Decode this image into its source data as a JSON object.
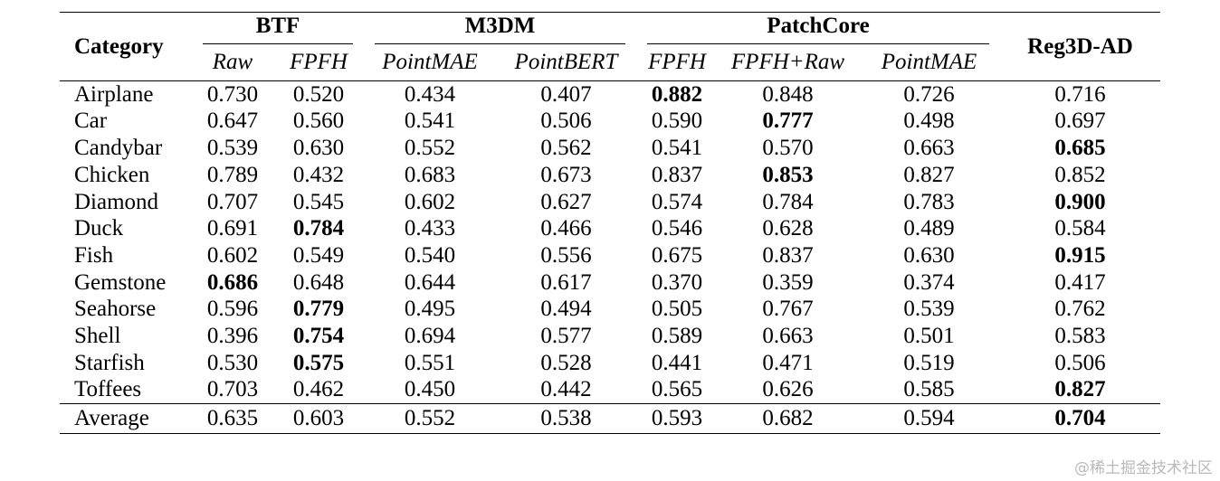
{
  "table": {
    "category_header": "Category",
    "groups": [
      {
        "label": "BTF",
        "span": 2
      },
      {
        "label": "M3DM",
        "span": 2
      },
      {
        "label": "PatchCore",
        "span": 3
      }
    ],
    "reg_header": "Reg3D-AD",
    "subheaders": [
      "Raw",
      "FPFH",
      "PointMAE",
      "PointBERT",
      "FPFH",
      "FPFH+Raw",
      "PointMAE"
    ],
    "rows": [
      {
        "category": "Airplane",
        "values": [
          "0.730",
          "0.520",
          "0.434",
          "0.407",
          "0.882",
          "0.848",
          "0.726",
          "0.716"
        ],
        "best": 4
      },
      {
        "category": "Car",
        "values": [
          "0.647",
          "0.560",
          "0.541",
          "0.506",
          "0.590",
          "0.777",
          "0.498",
          "0.697"
        ],
        "best": 5
      },
      {
        "category": "Candybar",
        "values": [
          "0.539",
          "0.630",
          "0.552",
          "0.562",
          "0.541",
          "0.570",
          "0.663",
          "0.685"
        ],
        "best": 7
      },
      {
        "category": "Chicken",
        "values": [
          "0.789",
          "0.432",
          "0.683",
          "0.673",
          "0.837",
          "0.853",
          "0.827",
          "0.852"
        ],
        "best": 5
      },
      {
        "category": "Diamond",
        "values": [
          "0.707",
          "0.545",
          "0.602",
          "0.627",
          "0.574",
          "0.784",
          "0.783",
          "0.900"
        ],
        "best": 7
      },
      {
        "category": "Duck",
        "values": [
          "0.691",
          "0.784",
          "0.433",
          "0.466",
          "0.546",
          "0.628",
          "0.489",
          "0.584"
        ],
        "best": 1
      },
      {
        "category": "Fish",
        "values": [
          "0.602",
          "0.549",
          "0.540",
          "0.556",
          "0.675",
          "0.837",
          "0.630",
          "0.915"
        ],
        "best": 7
      },
      {
        "category": "Gemstone",
        "values": [
          "0.686",
          "0.648",
          "0.644",
          "0.617",
          "0.370",
          "0.359",
          "0.374",
          "0.417"
        ],
        "best": 0
      },
      {
        "category": "Seahorse",
        "values": [
          "0.596",
          "0.779",
          "0.495",
          "0.494",
          "0.505",
          "0.767",
          "0.539",
          "0.762"
        ],
        "best": 1
      },
      {
        "category": "Shell",
        "values": [
          "0.396",
          "0.754",
          "0.694",
          "0.577",
          "0.589",
          "0.663",
          "0.501",
          "0.583"
        ],
        "best": 1
      },
      {
        "category": "Starfish",
        "values": [
          "0.530",
          "0.575",
          "0.551",
          "0.528",
          "0.441",
          "0.471",
          "0.519",
          "0.506"
        ],
        "best": 1
      },
      {
        "category": "Toffees",
        "values": [
          "0.703",
          "0.462",
          "0.450",
          "0.442",
          "0.565",
          "0.626",
          "0.585",
          "0.827"
        ],
        "best": 7
      }
    ],
    "average": {
      "category": "Average",
      "values": [
        "0.635",
        "0.603",
        "0.552",
        "0.538",
        "0.593",
        "0.682",
        "0.594",
        "0.704"
      ],
      "best": 7
    }
  },
  "watermark": "@稀土掘金技术社区"
}
